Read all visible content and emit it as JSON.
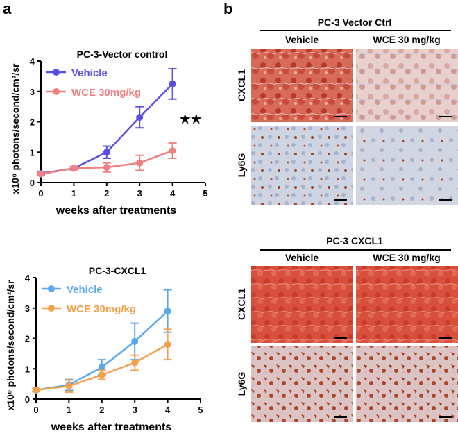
{
  "panel_labels": [
    "a",
    "b"
  ],
  "chart_data": [
    {
      "type": "line",
      "title": "PC-3-Vector control",
      "x_label": "weeks after treatments",
      "y_label": "x10⁹ photons/second/cm²/sr",
      "x": [
        0,
        1,
        2,
        3,
        4
      ],
      "xlim": [
        0,
        5
      ],
      "xticks": [
        0,
        1,
        2,
        3,
        4,
        5
      ],
      "ylim": [
        0,
        4
      ],
      "yticks": [
        0,
        1,
        2,
        3,
        4
      ],
      "annotation": "★★",
      "legend": "upper left",
      "series": [
        {
          "name": "Vehicle",
          "color": "#5a4fe0",
          "values": [
            0.3,
            0.47,
            1.0,
            2.15,
            3.25
          ],
          "errors": [
            0.05,
            0.05,
            0.2,
            0.35,
            0.5
          ]
        },
        {
          "name": "WCE 30mg/kg",
          "color": "#f08080",
          "values": [
            0.28,
            0.47,
            0.5,
            0.65,
            1.05
          ],
          "errors": [
            0.05,
            0.05,
            0.15,
            0.25,
            0.25
          ]
        }
      ]
    },
    {
      "type": "line",
      "title": "PC-3-CXCL1",
      "x_label": "weeks after treatments",
      "y_label": "x10⁹ photons/second/cm²/sr",
      "x": [
        0,
        1,
        2,
        3,
        4
      ],
      "xlim": [
        0,
        5
      ],
      "xticks": [
        0,
        1,
        2,
        3,
        4,
        5
      ],
      "ylim": [
        0,
        4
      ],
      "yticks": [
        0,
        1,
        2,
        3,
        4
      ],
      "legend": "upper left",
      "series": [
        {
          "name": "Vehicle",
          "color": "#5aa8f0",
          "values": [
            0.3,
            0.47,
            1.05,
            1.9,
            2.9
          ],
          "errors": [
            0.05,
            0.18,
            0.25,
            0.6,
            0.7
          ]
        },
        {
          "name": "WCE 30mg/kg",
          "color": "#f5a04a",
          "values": [
            0.3,
            0.43,
            0.8,
            1.2,
            1.8
          ],
          "errors": [
            0.05,
            0.2,
            0.15,
            0.25,
            0.5
          ]
        }
      ]
    }
  ],
  "micrographs": [
    {
      "title": "PC-3 Vector Ctrl",
      "columns": [
        "Vehicle",
        "WCE 30 mg/kg"
      ],
      "rows": [
        "CXCL1",
        "Ly6G"
      ]
    },
    {
      "title": "PC-3 CXCL1",
      "columns": [
        "Vehicle",
        "WCE 30 mg/kg"
      ],
      "rows": [
        "CXCL1",
        "Ly6G"
      ]
    }
  ]
}
